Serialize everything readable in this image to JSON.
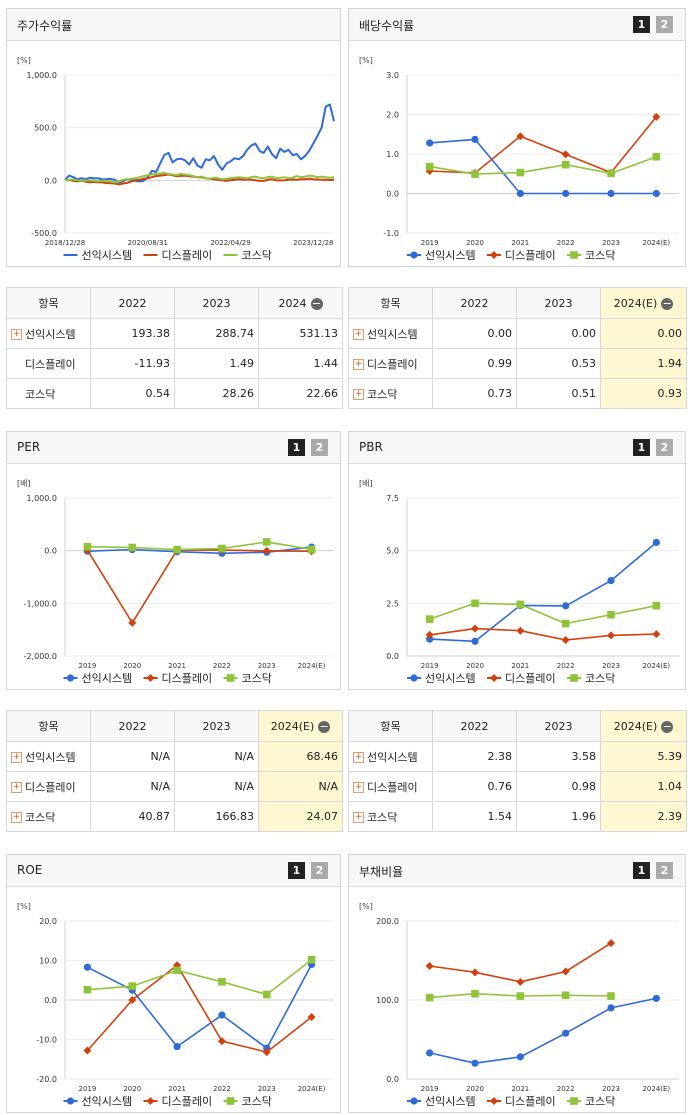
{
  "colors": {
    "seonik": "#2f6bd8",
    "display": "#d2400e",
    "kosdaq": "#8fc43a"
  },
  "panels": [
    {
      "key": "return",
      "title": "주가수익률",
      "buttons": [],
      "unit": "[%]",
      "chart_data": {
        "type": "line",
        "title": "주가수익률",
        "ylabel": "[%]",
        "ylim": [
          -500,
          1000
        ],
        "yticks": [
          "1,000.0",
          "500.0",
          "0.0",
          "-500.0"
        ],
        "ytick_values": [
          1000,
          500,
          0,
          -500
        ],
        "xtick_labels": [
          "2018/12/28",
          "2020/08/31",
          "2022/04/29",
          "2023/12/28"
        ],
        "xtick_index": [
          0,
          20,
          40,
          60
        ],
        "n_points": 66,
        "series": [
          {
            "name": "선익시스템",
            "color_key": "seonik",
            "marker": "none",
            "values": [
              5,
              45,
              30,
              12,
              20,
              10,
              25,
              18,
              20,
              8,
              12,
              15,
              5,
              -20,
              -8,
              6,
              10,
              -5,
              -10,
              -5,
              30,
              90,
              80,
              160,
              240,
              260,
              170,
              200,
              205,
              190,
              150,
              210,
              140,
              120,
              200,
              190,
              230,
              150,
              100,
              160,
              180,
              210,
              200,
              230,
              290,
              330,
              350,
              280,
              260,
              320,
              250,
              210,
              300,
              270,
              290,
              240,
              250,
              200,
              230,
              280,
              350,
              420,
              500,
              700,
              720,
              560
            ]
          },
          {
            "name": "디스플레이",
            "color_key": "display",
            "marker": "none",
            "values": [
              0,
              5,
              -5,
              -10,
              -5,
              -12,
              -20,
              -15,
              -18,
              -20,
              -25,
              -28,
              -30,
              -40,
              -30,
              -25,
              -10,
              0,
              5,
              15,
              20,
              30,
              40,
              45,
              50,
              55,
              48,
              40,
              42,
              45,
              38,
              35,
              30,
              28,
              20,
              15,
              10,
              5,
              0,
              -5,
              0,
              5,
              10,
              5,
              8,
              6,
              0,
              -5,
              -5,
              5,
              10,
              0,
              -2,
              0,
              5,
              8,
              5,
              10,
              12,
              15,
              10,
              8,
              5,
              6,
              3,
              5
            ]
          },
          {
            "name": "코스닥",
            "color_key": "kosdaq",
            "marker": "none",
            "values": [
              0,
              5,
              8,
              0,
              -5,
              -2,
              0,
              -5,
              -8,
              -5,
              -3,
              -10,
              -20,
              -10,
              5,
              10,
              15,
              20,
              30,
              40,
              50,
              55,
              60,
              65,
              70,
              60,
              55,
              50,
              60,
              55,
              50,
              40,
              30,
              35,
              20,
              15,
              25,
              20,
              10,
              15,
              20,
              25,
              30,
              25,
              20,
              30,
              35,
              25,
              20,
              30,
              35,
              20,
              25,
              30,
              20,
              25,
              40,
              30,
              35,
              45,
              40,
              30,
              35,
              30,
              25,
              30
            ]
          }
        ]
      }
    },
    {
      "key": "dividend",
      "title": "배당수익률",
      "buttons": [
        "1",
        "2"
      ],
      "unit": "[%]",
      "chart_data": {
        "type": "line",
        "title": "배당수익률",
        "ylabel": "[%]",
        "ylim": [
          -1,
          3
        ],
        "yticks": [
          "3.0",
          "2.0",
          "1.0",
          "0.0",
          "-1.0"
        ],
        "ytick_values": [
          3,
          2,
          1,
          0,
          -1
        ],
        "categories": [
          "2019",
          "2020",
          "2021",
          "2022",
          "2023",
          "2024(E)"
        ],
        "series": [
          {
            "name": "선익시스템",
            "color_key": "seonik",
            "marker": "circle",
            "values": [
              1.28,
              1.37,
              0.0,
              0.0,
              0.0,
              0.0
            ]
          },
          {
            "name": "디스플레이",
            "color_key": "display",
            "marker": "diamond",
            "values": [
              0.57,
              0.52,
              1.45,
              0.99,
              0.53,
              1.94
            ]
          },
          {
            "name": "코스닥",
            "color_key": "kosdaq",
            "marker": "square",
            "values": [
              0.68,
              0.49,
              0.53,
              0.73,
              0.51,
              0.93
            ]
          }
        ]
      }
    },
    {
      "key": "per",
      "title": "PER",
      "buttons": [
        "1",
        "2"
      ],
      "unit": "[배]",
      "chart_data": {
        "type": "line",
        "title": "PER",
        "ylabel": "[배]",
        "ylim": [
          -2000,
          1000
        ],
        "yticks": [
          "1,000.0",
          "0.0",
          "-1,000.0",
          "-2,000.0"
        ],
        "ytick_values": [
          1000,
          0,
          -1000,
          -2000
        ],
        "categories": [
          "2019",
          "2020",
          "2021",
          "2022",
          "2023",
          "2024(E)"
        ],
        "series": [
          {
            "name": "선익시스템",
            "color_key": "seonik",
            "marker": "circle",
            "values": [
              -10,
              20,
              -20,
              -50,
              -30,
              68.46
            ]
          },
          {
            "name": "디스플레이",
            "color_key": "display",
            "marker": "diamond",
            "values": [
              10,
              -1370,
              10,
              10,
              -5,
              -10
            ]
          },
          {
            "name": "코스닥",
            "color_key": "kosdaq",
            "marker": "square",
            "values": [
              75,
              60,
              20,
              40.87,
              166.83,
              24.07
            ]
          }
        ]
      }
    },
    {
      "key": "pbr",
      "title": "PBR",
      "buttons": [
        "1",
        "2"
      ],
      "unit": "[배]",
      "chart_data": {
        "type": "line",
        "title": "PBR",
        "ylabel": "[배]",
        "ylim": [
          0,
          7.5
        ],
        "yticks": [
          "7.5",
          "5.0",
          "2.5",
          "0.0"
        ],
        "ytick_values": [
          7.5,
          5,
          2.5,
          0
        ],
        "categories": [
          "2019",
          "2020",
          "2021",
          "2022",
          "2023",
          "2024(E)"
        ],
        "series": [
          {
            "name": "선익시스템",
            "color_key": "seonik",
            "marker": "circle",
            "values": [
              0.8,
              0.7,
              2.4,
              2.38,
              3.58,
              5.39
            ]
          },
          {
            "name": "디스플레이",
            "color_key": "display",
            "marker": "diamond",
            "values": [
              1.0,
              1.3,
              1.2,
              0.76,
              0.98,
              1.04
            ]
          },
          {
            "name": "코스닥",
            "color_key": "kosdaq",
            "marker": "square",
            "values": [
              1.75,
              2.5,
              2.45,
              1.54,
              1.96,
              2.39
            ]
          }
        ]
      }
    },
    {
      "key": "roe",
      "title": "ROE",
      "buttons": [
        "1",
        "2"
      ],
      "unit": "[%]",
      "chart_data": {
        "type": "line",
        "title": "ROE",
        "ylabel": "[%]",
        "ylim": [
          -20,
          20
        ],
        "yticks": [
          "20.0",
          "10.0",
          "0.0",
          "-10.0",
          "-20.0"
        ],
        "ytick_values": [
          20,
          10,
          0,
          -10,
          -20
        ],
        "categories": [
          "2019",
          "2020",
          "2021",
          "2022",
          "2023",
          "2024(E)"
        ],
        "series": [
          {
            "name": "선익시스템",
            "color_key": "seonik",
            "marker": "circle",
            "values": [
              8.3,
              2.5,
              -11.8,
              -3.8,
              -12.2,
              9.0
            ]
          },
          {
            "name": "디스플레이",
            "color_key": "display",
            "marker": "diamond",
            "values": [
              -12.8,
              0.0,
              8.8,
              -10.4,
              -13.2,
              -4.3
            ]
          },
          {
            "name": "코스닥",
            "color_key": "kosdaq",
            "marker": "square",
            "values": [
              2.6,
              3.5,
              7.5,
              4.6,
              1.4,
              10.2
            ]
          }
        ]
      }
    },
    {
      "key": "debt",
      "title": "부채비율",
      "buttons": [
        "1",
        "2"
      ],
      "unit": "[%]",
      "chart_data": {
        "type": "line",
        "title": "부채비율",
        "ylabel": "[%]",
        "ylim": [
          0,
          200
        ],
        "yticks": [
          "200.0",
          "100.0",
          "0.0"
        ],
        "ytick_values": [
          200,
          100,
          0
        ],
        "categories": [
          "2019",
          "2020",
          "2021",
          "2022",
          "2023",
          "2024(E)"
        ],
        "series": [
          {
            "name": "선익시스템",
            "color_key": "seonik",
            "marker": "circle",
            "values": [
              33,
              20,
              28,
              58,
              90,
              102
            ]
          },
          {
            "name": "디스플레이",
            "color_key": "display",
            "marker": "diamond",
            "values": [
              143,
              135,
              123,
              136,
              172,
              null
            ]
          },
          {
            "name": "코스닥",
            "color_key": "kosdaq",
            "marker": "square",
            "values": [
              103,
              108,
              105,
              106,
              105,
              null
            ]
          }
        ]
      }
    }
  ],
  "tables": [
    {
      "key": "return",
      "header": [
        "항목",
        "2022",
        "2023",
        "2024"
      ],
      "rows": [
        {
          "name": "선익시스템",
          "plus": true,
          "values": [
            "193.38",
            "288.74",
            "531.13"
          ]
        },
        {
          "name": "디스플레이",
          "plus": false,
          "values": [
            "-11.93",
            "1.49",
            "1.44"
          ]
        },
        {
          "name": "코스닥",
          "plus": false,
          "values": [
            "0.54",
            "28.26",
            "22.66"
          ]
        }
      ]
    },
    {
      "key": "dividend",
      "header": [
        "항목",
        "2022",
        "2023",
        "2024(E)"
      ],
      "rows": [
        {
          "name": "선익시스템",
          "plus": true,
          "values": [
            "0.00",
            "0.00",
            "0.00"
          ]
        },
        {
          "name": "디스플레이",
          "plus": true,
          "values": [
            "0.99",
            "0.53",
            "1.94"
          ]
        },
        {
          "name": "코스닥",
          "plus": true,
          "values": [
            "0.73",
            "0.51",
            "0.93"
          ]
        }
      ]
    },
    {
      "key": "per",
      "header": [
        "항목",
        "2022",
        "2023",
        "2024(E)"
      ],
      "rows": [
        {
          "name": "선익시스템",
          "plus": true,
          "values": [
            "N/A",
            "N/A",
            "68.46"
          ]
        },
        {
          "name": "디스플레이",
          "plus": true,
          "values": [
            "N/A",
            "N/A",
            "N/A"
          ]
        },
        {
          "name": "코스닥",
          "plus": true,
          "values": [
            "40.87",
            "166.83",
            "24.07"
          ]
        }
      ]
    },
    {
      "key": "pbr",
      "header": [
        "항목",
        "2022",
        "2023",
        "2024(E)"
      ],
      "rows": [
        {
          "name": "선익시스템",
          "plus": true,
          "values": [
            "2.38",
            "3.58",
            "5.39"
          ]
        },
        {
          "name": "디스플레이",
          "plus": true,
          "values": [
            "0.76",
            "0.98",
            "1.04"
          ]
        },
        {
          "name": "코스닥",
          "plus": true,
          "values": [
            "1.54",
            "1.96",
            "2.39"
          ]
        }
      ]
    }
  ]
}
